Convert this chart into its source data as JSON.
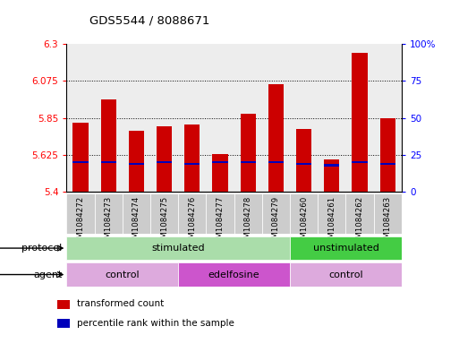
{
  "title": "GDS5544 / 8088671",
  "samples": [
    "GSM1084272",
    "GSM1084273",
    "GSM1084274",
    "GSM1084275",
    "GSM1084276",
    "GSM1084277",
    "GSM1084278",
    "GSM1084279",
    "GSM1084260",
    "GSM1084261",
    "GSM1084262",
    "GSM1084263"
  ],
  "transformed_count": [
    5.82,
    5.965,
    5.77,
    5.8,
    5.81,
    5.63,
    5.875,
    6.055,
    5.785,
    5.6,
    6.245,
    5.85
  ],
  "percentile_rank": [
    20,
    20,
    19,
    20,
    19,
    20,
    20,
    20,
    19,
    18,
    20,
    19
  ],
  "ylim_left": [
    5.4,
    6.3
  ],
  "ylim_right": [
    0,
    100
  ],
  "yticks_left": [
    5.4,
    5.625,
    5.85,
    6.075,
    6.3
  ],
  "yticks_right": [
    0,
    25,
    50,
    75,
    100
  ],
  "ytick_labels_left": [
    "5.4",
    "5.625",
    "5.85",
    "6.075",
    "6.3"
  ],
  "ytick_labels_right": [
    "0",
    "25",
    "50",
    "75",
    "100%"
  ],
  "bar_color": "#cc0000",
  "blue_color": "#0000bb",
  "bar_width": 0.55,
  "col_bg_color": "#cccccc",
  "protocol_groups": [
    {
      "label": "stimulated",
      "start": 0,
      "end": 7,
      "color": "#aaddaa"
    },
    {
      "label": "unstimulated",
      "start": 8,
      "end": 11,
      "color": "#44cc44"
    }
  ],
  "agent_groups": [
    {
      "label": "control",
      "start": 0,
      "end": 3,
      "color": "#ddaadd"
    },
    {
      "label": "edelfosine",
      "start": 4,
      "end": 7,
      "color": "#cc55cc"
    },
    {
      "label": "control",
      "start": 8,
      "end": 11,
      "color": "#ddaadd"
    }
  ],
  "legend_items": [
    {
      "label": "transformed count",
      "color": "#cc0000"
    },
    {
      "label": "percentile rank within the sample",
      "color": "#0000bb"
    }
  ],
  "protocol_label": "protocol",
  "agent_label": "agent"
}
